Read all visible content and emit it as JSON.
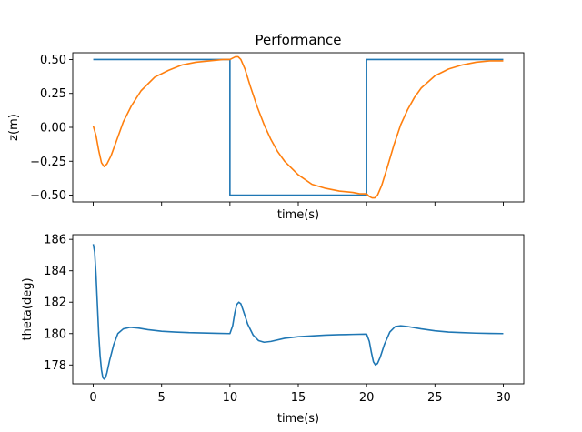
{
  "chart_data": [
    {
      "type": "line",
      "title": "Performance",
      "xlabel": "time(s)",
      "ylabel": "z(m)",
      "xlim": [
        -1.5,
        31.5
      ],
      "ylim": [
        -0.55,
        0.55
      ],
      "xticks": [
        0,
        5,
        10,
        15,
        20,
        25,
        30
      ],
      "show_x_tick_labels": false,
      "yticks": [
        -0.5,
        -0.25,
        0.0,
        0.25,
        0.5
      ],
      "ytick_labels": [
        "−0.50",
        "−0.25",
        "0.00",
        "0.25",
        "0.50"
      ],
      "grid": false,
      "series": [
        {
          "color": "#1f77b4",
          "points": [
            [
              0,
              0.5
            ],
            [
              10,
              0.5
            ],
            [
              10,
              -0.5
            ],
            [
              20,
              -0.5
            ],
            [
              20,
              0.5
            ],
            [
              30,
              0.5
            ]
          ]
        },
        {
          "color": "#ff7f0e",
          "points": [
            [
              0,
              0.01
            ],
            [
              0.2,
              -0.06
            ],
            [
              0.4,
              -0.17
            ],
            [
              0.6,
              -0.26
            ],
            [
              0.8,
              -0.29
            ],
            [
              1.0,
              -0.27
            ],
            [
              1.3,
              -0.21
            ],
            [
              1.7,
              -0.1
            ],
            [
              2.2,
              0.04
            ],
            [
              2.8,
              0.16
            ],
            [
              3.5,
              0.27
            ],
            [
              4.5,
              0.37
            ],
            [
              5.5,
              0.42
            ],
            [
              6.5,
              0.46
            ],
            [
              7.5,
              0.48
            ],
            [
              8.5,
              0.49
            ],
            [
              9.5,
              0.5
            ],
            [
              10.0,
              0.5
            ],
            [
              10.2,
              0.51
            ],
            [
              10.4,
              0.52
            ],
            [
              10.6,
              0.52
            ],
            [
              10.8,
              0.5
            ],
            [
              11.1,
              0.43
            ],
            [
              11.5,
              0.3
            ],
            [
              12.0,
              0.15
            ],
            [
              12.5,
              0.02
            ],
            [
              13.0,
              -0.09
            ],
            [
              13.5,
              -0.18
            ],
            [
              14.0,
              -0.25
            ],
            [
              15.0,
              -0.35
            ],
            [
              16.0,
              -0.42
            ],
            [
              17.0,
              -0.45
            ],
            [
              18.0,
              -0.47
            ],
            [
              19.0,
              -0.48
            ],
            [
              19.5,
              -0.49
            ],
            [
              20.0,
              -0.49
            ],
            [
              20.2,
              -0.51
            ],
            [
              20.4,
              -0.52
            ],
            [
              20.6,
              -0.52
            ],
            [
              20.8,
              -0.5
            ],
            [
              21.1,
              -0.43
            ],
            [
              21.5,
              -0.3
            ],
            [
              22.0,
              -0.13
            ],
            [
              22.5,
              0.02
            ],
            [
              23.0,
              0.13
            ],
            [
              23.5,
              0.22
            ],
            [
              24.0,
              0.29
            ],
            [
              25.0,
              0.38
            ],
            [
              26.0,
              0.43
            ],
            [
              27.0,
              0.46
            ],
            [
              28.0,
              0.48
            ],
            [
              29.0,
              0.49
            ],
            [
              30.0,
              0.49
            ]
          ]
        }
      ]
    },
    {
      "type": "line",
      "title": "",
      "xlabel": "time(s)",
      "ylabel": "theta(deg)",
      "xlim": [
        -1.5,
        31.5
      ],
      "ylim": [
        176.8,
        186.3
      ],
      "xticks": [
        0,
        5,
        10,
        15,
        20,
        25,
        30
      ],
      "show_x_tick_labels": true,
      "yticks": [
        178,
        180,
        182,
        184,
        186
      ],
      "grid": false,
      "series": [
        {
          "color": "#1f77b4",
          "points": [
            [
              0,
              185.7
            ],
            [
              0.1,
              185.2
            ],
            [
              0.2,
              183.8
            ],
            [
              0.3,
              181.9
            ],
            [
              0.4,
              180.0
            ],
            [
              0.5,
              178.6
            ],
            [
              0.6,
              177.7
            ],
            [
              0.7,
              177.2
            ],
            [
              0.8,
              177.1
            ],
            [
              0.9,
              177.2
            ],
            [
              1.0,
              177.5
            ],
            [
              1.2,
              178.3
            ],
            [
              1.5,
              179.3
            ],
            [
              1.8,
              180.0
            ],
            [
              2.2,
              180.3
            ],
            [
              2.7,
              180.4
            ],
            [
              3.3,
              180.35
            ],
            [
              4.0,
              180.25
            ],
            [
              5.0,
              180.15
            ],
            [
              6.0,
              180.1
            ],
            [
              7.0,
              180.06
            ],
            [
              8.0,
              180.04
            ],
            [
              9.0,
              180.02
            ],
            [
              10.0,
              180.0
            ],
            [
              10.2,
              180.5
            ],
            [
              10.35,
              181.3
            ],
            [
              10.5,
              181.85
            ],
            [
              10.65,
              182.0
            ],
            [
              10.8,
              181.9
            ],
            [
              11.0,
              181.4
            ],
            [
              11.3,
              180.6
            ],
            [
              11.7,
              179.9
            ],
            [
              12.1,
              179.55
            ],
            [
              12.5,
              179.45
            ],
            [
              13.0,
              179.5
            ],
            [
              14.0,
              179.7
            ],
            [
              15.0,
              179.8
            ],
            [
              16.0,
              179.85
            ],
            [
              17.0,
              179.9
            ],
            [
              18.0,
              179.93
            ],
            [
              19.0,
              179.95
            ],
            [
              20.0,
              179.97
            ],
            [
              20.2,
              179.5
            ],
            [
              20.35,
              178.8
            ],
            [
              20.5,
              178.2
            ],
            [
              20.65,
              178.0
            ],
            [
              20.8,
              178.1
            ],
            [
              21.0,
              178.5
            ],
            [
              21.3,
              179.3
            ],
            [
              21.7,
              180.1
            ],
            [
              22.1,
              180.45
            ],
            [
              22.5,
              180.5
            ],
            [
              23.0,
              180.45
            ],
            [
              24.0,
              180.3
            ],
            [
              25.0,
              180.18
            ],
            [
              26.0,
              180.1
            ],
            [
              27.0,
              180.06
            ],
            [
              28.0,
              180.03
            ],
            [
              29.0,
              180.01
            ],
            [
              30.0,
              180.0
            ]
          ]
        }
      ]
    }
  ]
}
